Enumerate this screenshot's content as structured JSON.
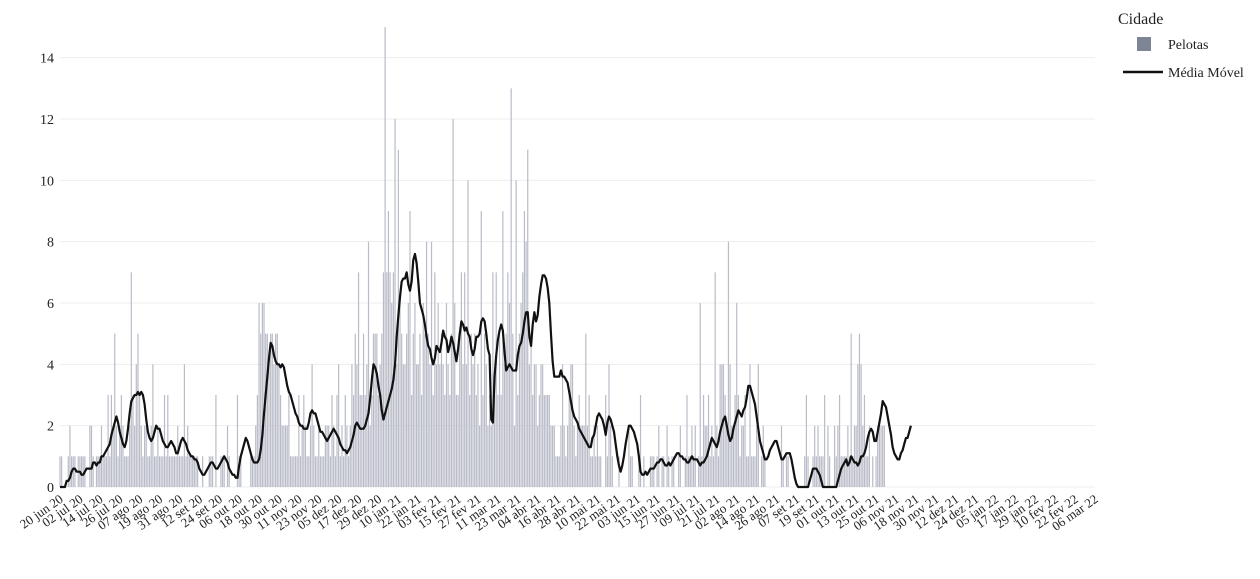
{
  "chart_data": {
    "type": "bar",
    "subtype": "bar-with-moving-average-line",
    "x_type": "date",
    "x_start": "2020-06-20",
    "x_end": "2022-03-06",
    "y_range": [
      0,
      15
    ],
    "y_ticks": [
      0,
      2,
      4,
      6,
      8,
      10,
      12,
      14
    ],
    "x_tick_labels": [
      "20 jun 20",
      "02 jul 20",
      "14 jul 20",
      "26 jul 20",
      "07 ago 20",
      "19 ago 20",
      "31 ago 20",
      "12 set 20",
      "24 set 20",
      "06 out 20",
      "18 out 20",
      "30 out 20",
      "11 nov 20",
      "23 nov 20",
      "05 dez 20",
      "17 dez 20",
      "29 dez 20",
      "10 jan 21",
      "22 jan 21",
      "03 fev 21",
      "15 fev 21",
      "27 fev 21",
      "11 mar 21",
      "23 mar 21",
      "04 abr 21",
      "16 abr 21",
      "28 abr 21",
      "10 mai 21",
      "22 mai 21",
      "03 jun 21",
      "15 jun 21",
      "27 jun 21",
      "09 jul 21",
      "21 jul 21",
      "02 ago 21",
      "14 ago 21",
      "26 ago 21",
      "07 set 21",
      "19 set 21",
      "01 out 21",
      "13 out 21",
      "25 out 21",
      "06 nov 21",
      "18 nov 21",
      "30 nov 21",
      "12 dez 21",
      "24 dez 21",
      "05 jan 22",
      "17 jan 22",
      "29 jan 22",
      "10 fev 22",
      "22 fev 22",
      "06 mar 22"
    ],
    "grid": true,
    "legend": {
      "title": "Cidade",
      "placement": "top-right",
      "entries": [
        {
          "name": "Pelotas",
          "kind": "bar",
          "color": "#7e8595"
        },
        {
          "name": "Média Móvel",
          "kind": "line",
          "color": "#111111"
        }
      ]
    },
    "series": [
      {
        "name": "Pelotas",
        "kind": "bar",
        "color": "#b9bcc8",
        "values": [
          1,
          1,
          0,
          0,
          0,
          1,
          2,
          1,
          1,
          1,
          0,
          1,
          1,
          1,
          1,
          1,
          0,
          0,
          2,
          2,
          1,
          0,
          1,
          1,
          1,
          2,
          1,
          1,
          1,
          3,
          1,
          3,
          2,
          5,
          2,
          1,
          2,
          3,
          2,
          1,
          1,
          1,
          2,
          7,
          3,
          2,
          4,
          5,
          3,
          2,
          1,
          2,
          2,
          1,
          1,
          2,
          4,
          1,
          1,
          2,
          1,
          1,
          1,
          3,
          1,
          3,
          1,
          1,
          1,
          1,
          1,
          2,
          1,
          1,
          1,
          4,
          1,
          2,
          1,
          1,
          1,
          1,
          1,
          1,
          0,
          0,
          1,
          0,
          0,
          0,
          1,
          1,
          1,
          0,
          3,
          0,
          0,
          1,
          1,
          1,
          0,
          2,
          1,
          0,
          0,
          0,
          0,
          3,
          1,
          1,
          0,
          0,
          0,
          0,
          0,
          1,
          1,
          1,
          2,
          3,
          6,
          5,
          6,
          6,
          5,
          5,
          4,
          5,
          5,
          4,
          5,
          5,
          4,
          3,
          2,
          2,
          2,
          2,
          3,
          1,
          1,
          1,
          1,
          1,
          3,
          1,
          2,
          3,
          2,
          1,
          1,
          2,
          4,
          2,
          1,
          1,
          2,
          1,
          1,
          1,
          2,
          2,
          2,
          1,
          3,
          2,
          1,
          3,
          4,
          1,
          2,
          1,
          3,
          2,
          1,
          2,
          4,
          3,
          5,
          4,
          7,
          3,
          3,
          5,
          3,
          4,
          8,
          2,
          3,
          5,
          5,
          5,
          3,
          4,
          5,
          7,
          15,
          7,
          9,
          7,
          6,
          7,
          12,
          4,
          11,
          6,
          5,
          4,
          4,
          5,
          6,
          9,
          3,
          5,
          6,
          4,
          4,
          5,
          3,
          6,
          5,
          8,
          5,
          4,
          8,
          3,
          7,
          4,
          6,
          4,
          5,
          4,
          3,
          6,
          4,
          3,
          5,
          12,
          6,
          3,
          3,
          5,
          7,
          4,
          7,
          4,
          10,
          3,
          5,
          4,
          5,
          3,
          4,
          2,
          9,
          3,
          5,
          4,
          2,
          3,
          2,
          7,
          3,
          7,
          3,
          5,
          3,
          9,
          4,
          5,
          7,
          6,
          13,
          5,
          2,
          10,
          3,
          5,
          6,
          7,
          9,
          8,
          11,
          4,
          5,
          3,
          4,
          4,
          2,
          3,
          4,
          4,
          3,
          3,
          3,
          3,
          2,
          2,
          2,
          1,
          1,
          1,
          2,
          4,
          2,
          1,
          2,
          3,
          4,
          4,
          2,
          1,
          2,
          3,
          2,
          2,
          2,
          5,
          2,
          3,
          1,
          1,
          2,
          1,
          2,
          1,
          1,
          0,
          0,
          3,
          1,
          4,
          2,
          1,
          0,
          0,
          0,
          1,
          0,
          0,
          0,
          0,
          0,
          2,
          1,
          1,
          0,
          0,
          0,
          1,
          3,
          0,
          1,
          0,
          0,
          0,
          1,
          1,
          1,
          0,
          1,
          2,
          0,
          1,
          1,
          0,
          2,
          1,
          0,
          1,
          1,
          0,
          0,
          1,
          2,
          0,
          0,
          1,
          3,
          1,
          1,
          2,
          1,
          2,
          0,
          1,
          6,
          1,
          3,
          2,
          2,
          3,
          1,
          2,
          1,
          7,
          2,
          1,
          4,
          4,
          4,
          3,
          2,
          8,
          4,
          2,
          2,
          3,
          6,
          3,
          1,
          2,
          2,
          3,
          1,
          1,
          4,
          1,
          1,
          1,
          2,
          4,
          0,
          1,
          2,
          1,
          0,
          0,
          0,
          0,
          0,
          0,
          0,
          0,
          0,
          2,
          1,
          0,
          1,
          1,
          0,
          0,
          0,
          0,
          0,
          0,
          0,
          0,
          0,
          1,
          3,
          1,
          0,
          0,
          1,
          2,
          1,
          2,
          1,
          1,
          1,
          3,
          0,
          2,
          1,
          0,
          0,
          2,
          1,
          2,
          3,
          1,
          1,
          1,
          1,
          2,
          1,
          5,
          1,
          2,
          2,
          4,
          5,
          4,
          2,
          3,
          1,
          1,
          2,
          0,
          1,
          0,
          1,
          2,
          2,
          2,
          2,
          2
        ]
      },
      {
        "name": "Média Móvel",
        "kind": "line",
        "color": "#111111",
        "values": [
          0.0,
          0.0,
          0.0,
          0.0,
          0.2,
          0.2,
          0.3,
          0.5,
          0.6,
          0.6,
          0.5,
          0.5,
          0.5,
          0.4,
          0.4,
          0.5,
          0.6,
          0.6,
          0.6,
          0.6,
          0.8,
          0.8,
          0.7,
          0.8,
          0.8,
          1.0,
          1.0,
          1.1,
          1.2,
          1.3,
          1.4,
          1.7,
          1.9,
          2.1,
          2.3,
          2.1,
          1.8,
          1.6,
          1.4,
          1.3,
          1.5,
          1.9,
          2.4,
          2.8,
          2.9,
          3.0,
          3.0,
          3.1,
          3.0,
          3.1,
          3.0,
          2.7,
          2.2,
          1.8,
          1.6,
          1.5,
          1.6,
          1.8,
          2.0,
          1.9,
          1.9,
          1.7,
          1.5,
          1.4,
          1.3,
          1.3,
          1.4,
          1.5,
          1.4,
          1.3,
          1.1,
          1.1,
          1.3,
          1.5,
          1.6,
          1.5,
          1.4,
          1.2,
          1.1,
          1.0,
          1.0,
          0.9,
          0.9,
          0.8,
          0.6,
          0.5,
          0.4,
          0.4,
          0.5,
          0.6,
          0.7,
          0.8,
          0.8,
          0.7,
          0.6,
          0.6,
          0.7,
          0.8,
          0.9,
          1.0,
          0.9,
          0.8,
          0.6,
          0.5,
          0.4,
          0.4,
          0.3,
          0.3,
          0.7,
          1.0,
          1.2,
          1.4,
          1.6,
          1.5,
          1.3,
          1.1,
          0.9,
          0.8,
          0.8,
          0.8,
          0.9,
          1.2,
          1.7,
          2.4,
          3.0,
          3.6,
          4.2,
          4.7,
          4.6,
          4.3,
          4.1,
          4.0,
          4.0,
          3.9,
          4.0,
          3.9,
          3.6,
          3.3,
          3.1,
          3.0,
          2.8,
          2.6,
          2.4,
          2.3,
          2.1,
          2.0,
          2.0,
          1.9,
          1.9,
          1.9,
          2.1,
          2.4,
          2.5,
          2.4,
          2.4,
          2.2,
          2.0,
          1.8,
          1.8,
          1.7,
          1.6,
          1.5,
          1.6,
          1.7,
          1.8,
          1.9,
          1.8,
          1.7,
          1.6,
          1.4,
          1.3,
          1.2,
          1.2,
          1.1,
          1.2,
          1.3,
          1.5,
          1.7,
          2.0,
          2.1,
          2.0,
          1.9,
          1.9,
          1.9,
          2.0,
          2.2,
          2.4,
          2.9,
          3.5,
          4.0,
          3.9,
          3.7,
          3.3,
          3.0,
          2.5,
          2.2,
          2.4,
          2.6,
          2.8,
          3.0,
          3.2,
          3.5,
          4.0,
          4.9,
          5.6,
          6.2,
          6.7,
          6.8,
          6.8,
          7.0,
          6.6,
          6.4,
          6.7,
          7.4,
          7.6,
          7.3,
          6.7,
          6.0,
          5.8,
          5.6,
          5.3,
          4.9,
          4.6,
          4.5,
          4.2,
          4.0,
          4.2,
          4.6,
          4.5,
          4.4,
          4.7,
          5.1,
          4.9,
          4.8,
          4.4,
          4.6,
          4.9,
          4.7,
          4.4,
          4.1,
          4.5,
          5.0,
          5.4,
          5.3,
          5.1,
          5.2,
          5.0,
          4.9,
          4.5,
          4.3,
          4.5,
          4.9,
          4.9,
          5.0,
          5.4,
          5.5,
          5.4,
          5.0,
          4.5,
          4.3,
          2.2,
          2.1,
          3.6,
          4.3,
          4.8,
          5.1,
          5.3,
          5.1,
          4.4,
          3.8,
          3.9,
          4.0,
          3.9,
          3.8,
          3.8,
          3.8,
          4.3,
          4.6,
          4.7,
          5.0,
          5.4,
          5.7,
          5.7,
          4.9,
          4.6,
          5.3,
          5.7,
          5.4,
          5.6,
          6.2,
          6.6,
          6.9,
          6.9,
          6.8,
          6.5,
          6.0,
          5.0,
          4.1,
          3.6,
          3.6,
          3.6,
          3.6,
          3.8,
          3.6,
          3.6,
          3.5,
          3.4,
          3.1,
          2.8,
          2.5,
          2.3,
          2.2,
          2.1,
          1.9,
          1.8,
          1.7,
          1.6,
          1.5,
          1.4,
          1.3,
          1.3,
          1.6,
          1.7,
          2.0,
          2.3,
          2.4,
          2.3,
          2.2,
          2.0,
          1.7,
          2.1,
          2.3,
          2.2,
          2.0,
          1.8,
          1.4,
          1.0,
          0.7,
          0.5,
          0.7,
          1.0,
          1.4,
          1.7,
          2.0,
          2.0,
          1.9,
          1.8,
          1.6,
          1.4,
          1.0,
          0.5,
          0.4,
          0.4,
          0.5,
          0.4,
          0.5,
          0.6,
          0.6,
          0.6,
          0.7,
          0.8,
          0.8,
          0.9,
          0.9,
          0.8,
          0.7,
          0.7,
          0.8,
          0.7,
          0.8,
          0.9,
          1.0,
          1.1,
          1.1,
          1.0,
          1.0,
          0.9,
          0.9,
          0.8,
          0.8,
          0.9,
          1.0,
          0.9,
          0.9,
          0.9,
          0.8,
          0.7,
          0.8,
          0.8,
          0.9,
          1.0,
          1.2,
          1.4,
          1.6,
          1.5,
          1.4,
          1.3,
          1.5,
          1.8,
          2.0,
          2.2,
          2.3,
          2.0,
          1.7,
          1.5,
          1.6,
          1.9,
          2.1,
          2.3,
          2.5,
          2.4,
          2.3,
          2.5,
          2.6,
          2.9,
          3.3,
          3.3,
          3.1,
          2.9,
          2.7,
          2.3,
          1.9,
          1.5,
          1.3,
          1.1,
          0.9,
          0.9,
          1.0,
          1.2,
          1.3,
          1.4,
          1.5,
          1.5,
          1.3,
          1.1,
          0.9,
          0.9,
          1.0,
          1.1,
          1.1,
          1.1,
          0.9,
          0.6,
          0.3,
          0.1,
          0.0,
          0.0,
          0.0,
          0.0,
          0.0,
          0.0,
          0.0,
          0.2,
          0.4,
          0.6,
          0.6,
          0.6,
          0.5,
          0.4,
          0.2,
          0.0,
          0.0,
          0.0,
          0.0,
          0.0,
          0.0,
          0.0,
          0.0,
          0.0,
          0.2,
          0.4,
          0.6,
          0.7,
          0.8,
          0.9,
          0.7,
          0.8,
          1.0,
          0.9,
          0.8,
          0.8,
          0.7,
          0.8,
          1.0,
          1.0,
          1.1,
          1.3,
          1.6,
          1.8,
          1.9,
          1.8,
          1.5,
          1.5,
          1.8,
          2.1,
          2.4,
          2.8,
          2.7,
          2.6,
          2.3,
          2.0,
          1.7,
          1.3,
          1.1,
          1.0,
          0.9,
          0.9,
          1.1,
          1.2,
          1.4,
          1.6,
          1.6,
          1.8,
          2.0
        ]
      }
    ]
  }
}
